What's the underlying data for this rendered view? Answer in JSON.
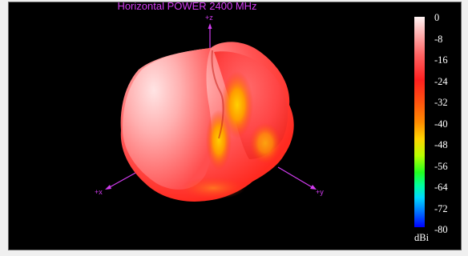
{
  "plot": {
    "title": "Horizontal POWER 2400  MHz",
    "axes": {
      "z": "+z",
      "x": "+x",
      "y": "+y"
    }
  },
  "colorbar": {
    "ticks": [
      "0",
      "-8",
      "-16",
      "-24",
      "-32",
      "-40",
      "-48",
      "-56",
      "-64",
      "-72",
      "-80"
    ],
    "unit": "dBi",
    "max": 0,
    "min": -80
  },
  "colors": {
    "background": "#000000",
    "axis": "#d23cf0",
    "label": "#ffffff"
  }
}
